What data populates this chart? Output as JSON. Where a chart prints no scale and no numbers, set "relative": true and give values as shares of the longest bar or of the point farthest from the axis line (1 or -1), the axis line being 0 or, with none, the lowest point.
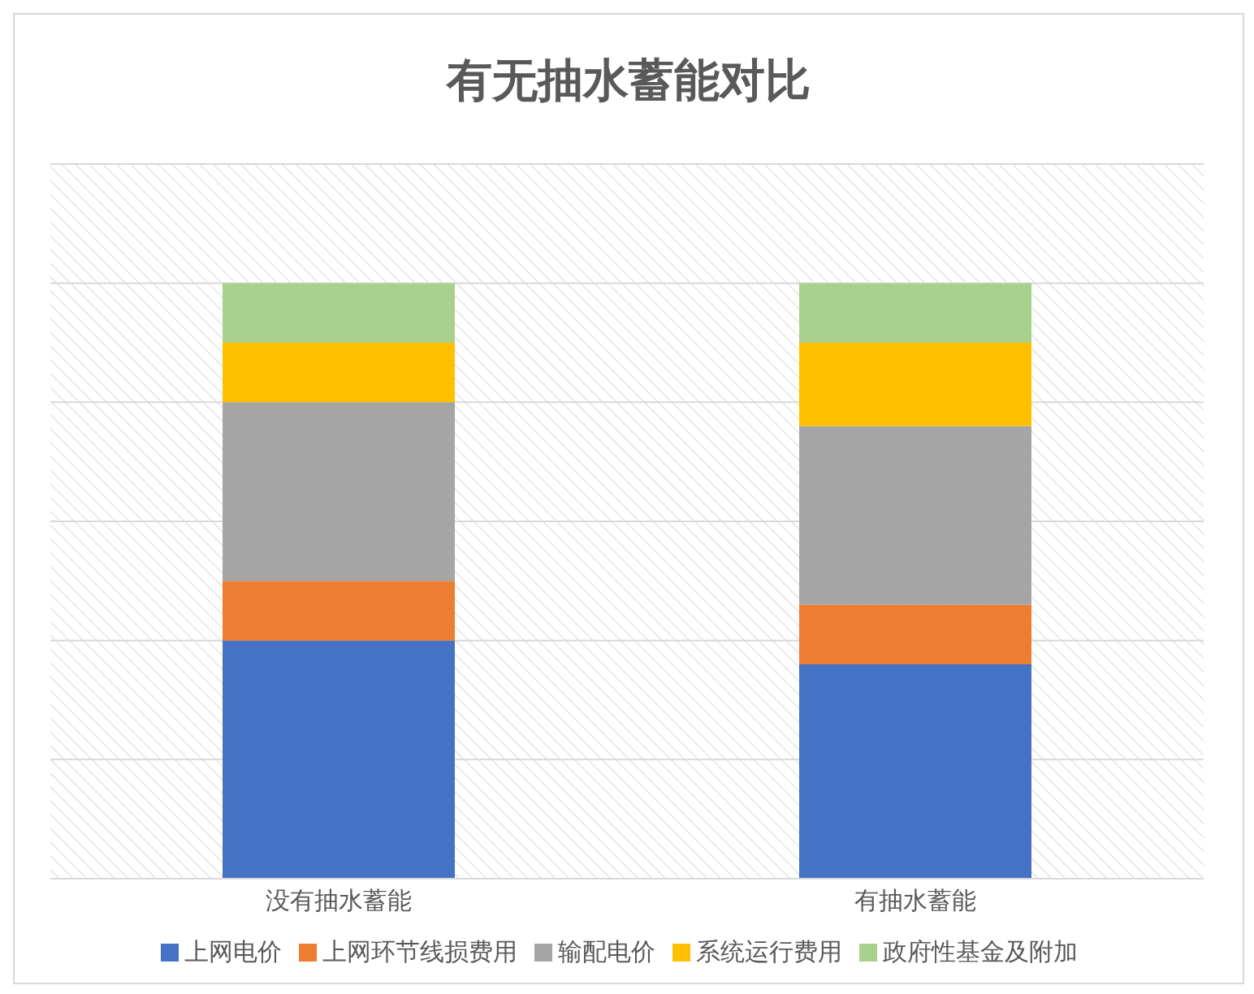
{
  "chart_data": {
    "type": "bar",
    "title": "有无抽水蓄能对比",
    "categories": [
      "没有抽水蓄能",
      "有抽水蓄能"
    ],
    "stacked": true,
    "relative": true,
    "grid": "y",
    "legend": "bottom",
    "series": [
      {
        "name": "上网电价",
        "color": "#4472c4",
        "values": [
          0.4,
          0.36
        ]
      },
      {
        "name": "上网环节线损费用",
        "color": "#ed7d31",
        "values": [
          0.1,
          0.1
        ]
      },
      {
        "name": "输配电价",
        "color": "#a5a5a5",
        "values": [
          0.3,
          0.3
        ]
      },
      {
        "name": "系统运行费用",
        "color": "#ffc000",
        "values": [
          0.1,
          0.14
        ]
      },
      {
        "name": "政府性基金及附加",
        "color": "#a9d18e",
        "values": [
          0.1,
          0.1
        ]
      }
    ]
  }
}
